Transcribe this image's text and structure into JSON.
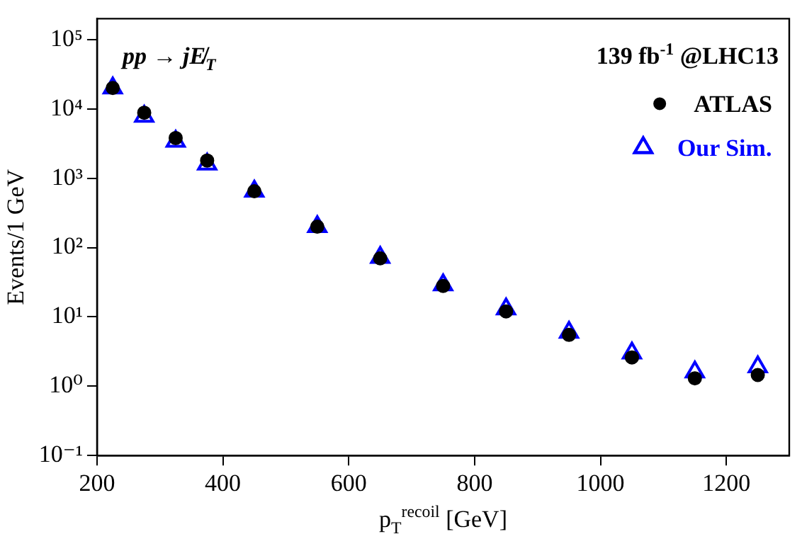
{
  "chart_data": {
    "type": "scatter",
    "xlabel": "p$_{T}$$^{recoil}$ [GeV]",
    "ylabel": "Events/1 GeV",
    "annotations": [
      "pp → jE̸$_{T}$",
      "139 fb$^{-1}$ @LHC13"
    ],
    "x": [
      225,
      275,
      325,
      375,
      450,
      550,
      650,
      750,
      850,
      950,
      1050,
      1150,
      1250
    ],
    "series": [
      {
        "name": "ATLAS",
        "color": "#000000",
        "marker": "circle",
        "values": [
          20000,
          8800,
          3800,
          1800,
          650,
          200,
          70,
          28,
          12,
          5.5,
          2.6,
          1.3,
          1.45
        ]
      },
      {
        "name": "Our Sim.",
        "color": "#0000ff",
        "marker": "triangle",
        "values": [
          20000,
          7800,
          3400,
          1600,
          650,
          200,
          72,
          29,
          13,
          6,
          3.0,
          1.6,
          1.9
        ]
      }
    ],
    "log": "y",
    "xlim": [
      200,
      1300
    ],
    "xticks": [
      200,
      400,
      600,
      800,
      1000,
      1200
    ],
    "ylim": [
      0.1,
      200000
    ],
    "yticks": [
      {
        "value": 0.1,
        "label": "10⁻¹"
      },
      {
        "value": 1,
        "label": "10⁰"
      },
      {
        "value": 10,
        "label": "10¹"
      },
      {
        "value": 100,
        "label": "10²"
      },
      {
        "value": 1000,
        "label": "10³"
      },
      {
        "value": 10000,
        "label": "10⁴"
      },
      {
        "value": 100000,
        "label": "10⁵"
      }
    ],
    "grid": false,
    "legend": "top right"
  }
}
